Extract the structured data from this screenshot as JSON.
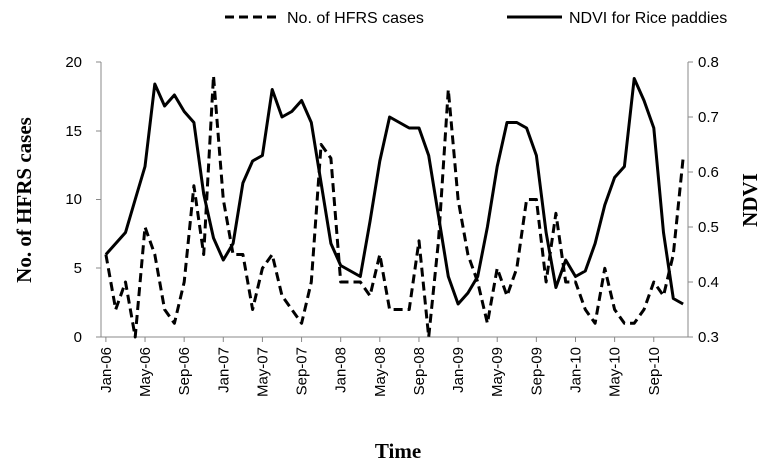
{
  "chart_data": {
    "type": "line",
    "title": "",
    "xlabel": "Time",
    "ylabel": "No. of HFRS cases",
    "y2label": "NDVI",
    "ylim": [
      0,
      20
    ],
    "y2lim": [
      0.3,
      0.8
    ],
    "yticks": [
      "0",
      "5",
      "10",
      "15",
      "20"
    ],
    "y2ticks": [
      "0.3",
      "0.4",
      "0.5",
      "0.6",
      "0.7",
      "0.8"
    ],
    "legend_position": "top",
    "x_tick_labels": [
      "Jan-06",
      "May-06",
      "Sep-06",
      "Jan-07",
      "May-07",
      "Sep-07",
      "Jan-08",
      "May-08",
      "Sep-08",
      "Jan-09",
      "May-09",
      "Sep-09",
      "Jan-10",
      "May-10",
      "Sep-10"
    ],
    "x": [
      "Jan-06",
      "Feb-06",
      "Mar-06",
      "Apr-06",
      "May-06",
      "Jun-06",
      "Jul-06",
      "Aug-06",
      "Sep-06",
      "Oct-06",
      "Nov-06",
      "Dec-06",
      "Jan-07",
      "Feb-07",
      "Mar-07",
      "Apr-07",
      "May-07",
      "Jun-07",
      "Jul-07",
      "Aug-07",
      "Sep-07",
      "Oct-07",
      "Nov-07",
      "Dec-07",
      "Jan-08",
      "Feb-08",
      "Mar-08",
      "Apr-08",
      "May-08",
      "Jun-08",
      "Jul-08",
      "Aug-08",
      "Sep-08",
      "Oct-08",
      "Nov-08",
      "Dec-08",
      "Jan-09",
      "Feb-09",
      "Mar-09",
      "Apr-09",
      "May-09",
      "Jun-09",
      "Jul-09",
      "Aug-09",
      "Sep-09",
      "Oct-09",
      "Nov-09",
      "Dec-09",
      "Jan-10",
      "Feb-10",
      "Mar-10",
      "Apr-10",
      "May-10",
      "Jun-10",
      "Jul-10",
      "Aug-10",
      "Sep-10",
      "Oct-10",
      "Nov-10",
      "Dec-10"
    ],
    "series": [
      {
        "name": "No. of HFRS cases",
        "axis": "left",
        "style": "dashed",
        "values": [
          6,
          2,
          4,
          0,
          8,
          6,
          2,
          1,
          4,
          11,
          6,
          19,
          10,
          6,
          6,
          2,
          5,
          6,
          3,
          2,
          1,
          4,
          14,
          13,
          4,
          4,
          4,
          3,
          6,
          2,
          2,
          2,
          7,
          0,
          7,
          18,
          10,
          6,
          4,
          1,
          5,
          3,
          5,
          10,
          10,
          4,
          9,
          4,
          4,
          2,
          1,
          5,
          2,
          1,
          1,
          2,
          4,
          3,
          6,
          13
        ]
      },
      {
        "name": "NDVI for Rice paddies",
        "axis": "right",
        "style": "solid",
        "values": [
          0.45,
          0.47,
          0.49,
          0.55,
          0.61,
          0.76,
          0.72,
          0.74,
          0.71,
          0.69,
          0.56,
          0.48,
          0.44,
          0.47,
          0.58,
          0.62,
          0.63,
          0.75,
          0.7,
          0.71,
          0.73,
          0.69,
          0.58,
          0.47,
          0.43,
          0.42,
          0.41,
          0.51,
          0.62,
          0.7,
          0.69,
          0.68,
          0.68,
          0.63,
          0.52,
          0.41,
          0.36,
          0.38,
          0.41,
          0.5,
          0.61,
          0.69,
          0.69,
          0.68,
          0.63,
          0.49,
          0.39,
          0.44,
          0.41,
          0.42,
          0.47,
          0.54,
          0.59,
          0.61,
          0.77,
          0.73,
          0.68,
          0.49,
          0.37,
          0.36
        ]
      }
    ]
  }
}
